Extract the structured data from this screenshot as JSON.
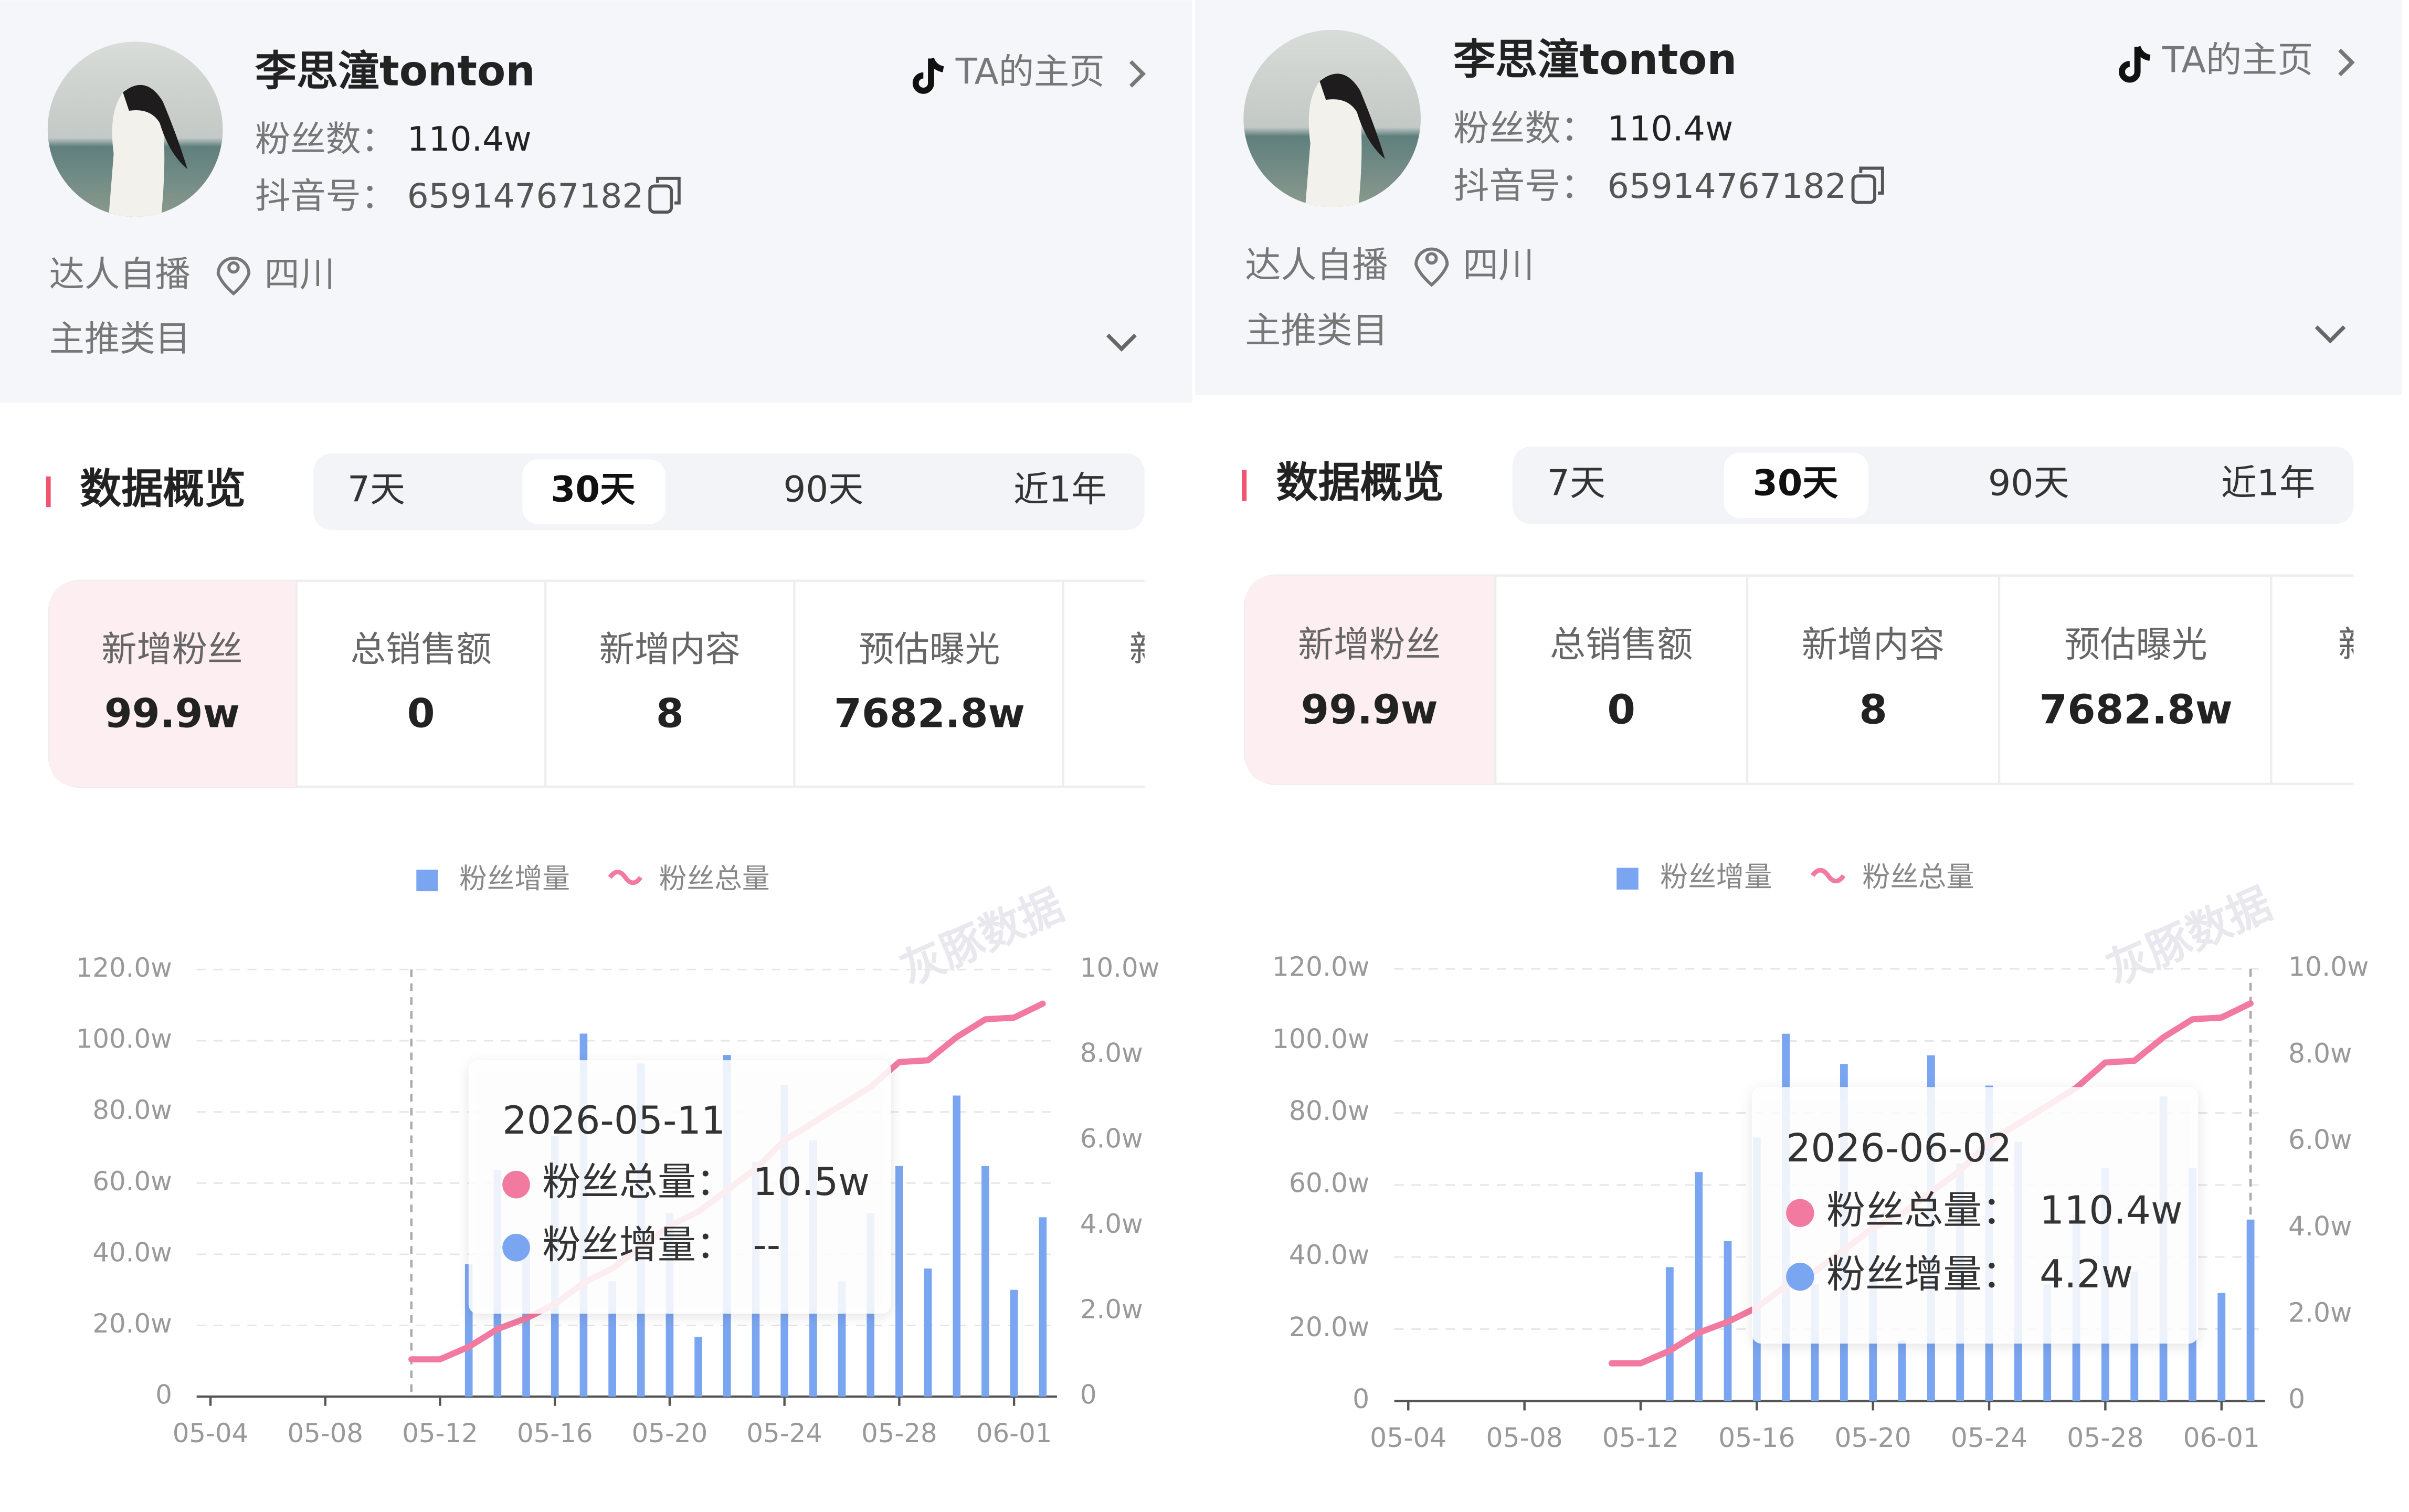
{
  "panels": [
    {
      "profile": {
        "name": "李思潼tonton",
        "fans_label": "粉丝数：",
        "fans": "110.4w",
        "id_label": "抖音号：",
        "id": "65914767182",
        "homepage": "TA的主页",
        "tag": "达人自播",
        "location": "四川",
        "category": "主推类目"
      },
      "section_title": "数据概览",
      "tabs": [
        "7天",
        "30天",
        "90天",
        "近1年"
      ],
      "metrics": [
        {
          "label": "新增粉丝",
          "value": "99.9w"
        },
        {
          "label": "总销售额",
          "value": "0"
        },
        {
          "label": "新增内容",
          "value": "8"
        },
        {
          "label": "预估曝光",
          "value": "7682.8w"
        },
        {
          "label": "新"
        }
      ],
      "chart_data": {
        "type": "bar-line",
        "watermark": "灰豚数据",
        "categories": [
          "05-04",
          null,
          null,
          null,
          "05-08",
          null,
          null,
          null,
          "05-12",
          null,
          null,
          null,
          "05-16",
          null,
          null,
          null,
          "05-20",
          null,
          null,
          null,
          "05-24",
          null,
          null,
          null,
          "05-28",
          null,
          null,
          null,
          "06-01",
          null
        ],
        "series": [
          {
            "name": "粉丝增量",
            "color": "#7aa5f0",
            "axis": "y2",
            "values": [
              null,
              null,
              null,
              null,
              null,
              null,
              null,
              null,
              null,
              3.1,
              5.3,
              3.7,
              6.1,
              8.5,
              2.7,
              7.8,
              4.3,
              1.4,
              8.0,
              5.5,
              7.3,
              6.0,
              2.7,
              4.3,
              5.4,
              3.0,
              7.05,
              5.4,
              2.5,
              4.2
            ]
          },
          {
            "name": "粉丝总量",
            "color": "#f27aa0",
            "values": [
              null,
              null,
              null,
              null,
              null,
              null,
              null,
              10.5,
              10.5,
              14,
              19,
              22,
              26,
              32,
              36,
              42,
              48,
              52,
              58,
              64,
              72,
              77,
              82,
              87,
              94,
              94.5,
              101,
              106,
              106.5,
              110.4
            ]
          }
        ],
        "ylim": [
          0,
          120
        ],
        "yticks": [
          0,
          {
            "value": 20,
            "label": "20.0w"
          },
          {
            "value": 40,
            "label": "40.0w"
          },
          {
            "value": 60,
            "label": "60.0w"
          },
          {
            "value": 80,
            "label": "80.0w"
          },
          {
            "value": 100,
            "label": "100.0w"
          },
          {
            "value": 120,
            "label": "120.0w"
          }
        ],
        "y2lim": [
          0,
          10
        ],
        "y2ticks": [
          0,
          {
            "value": 2,
            "label": "2.0w"
          },
          {
            "value": 4,
            "label": "4.0w"
          },
          {
            "value": 6,
            "label": "6.0w"
          },
          {
            "value": 8,
            "label": "8.0w"
          },
          {
            "value": 10,
            "label": "10.0w"
          }
        ],
        "grid": true
      },
      "tooltip": {
        "date": "2026-05-11",
        "items": [
          {
            "label": "粉丝总量：",
            "value": "10.5w"
          },
          {
            "label": "粉丝增量：",
            "value": "--"
          }
        ]
      }
    },
    {
      "profile": {
        "name": "李思潼tonton",
        "fans_label": "粉丝数：",
        "fans": "110.4w",
        "id_label": "抖音号：",
        "id": "65914767182",
        "homepage": "TA的主页",
        "tag": "达人自播",
        "location": "四川",
        "category": "主推类目"
      },
      "section_title": "数据概览",
      "tabs": [
        "7天",
        "30天",
        "90天",
        "近1年"
      ],
      "metrics": [
        {
          "label": "新增粉丝",
          "value": "99.9w"
        },
        {
          "label": "总销售额",
          "value": "0"
        },
        {
          "label": "新增内容",
          "value": "8"
        },
        {
          "label": "预估曝光",
          "value": "7682.8w"
        },
        {
          "label": "新"
        }
      ],
      "chart_data": {
        "type": "bar-line",
        "watermark": "灰豚数据",
        "categories": [
          "05-04",
          null,
          null,
          null,
          "05-08",
          null,
          null,
          null,
          "05-12",
          null,
          null,
          null,
          "05-16",
          null,
          null,
          null,
          "05-20",
          null,
          null,
          null,
          "05-24",
          null,
          null,
          null,
          "05-28",
          null,
          null,
          null,
          "06-01",
          null
        ],
        "series": [
          {
            "name": "粉丝增量",
            "color": "#7aa5f0",
            "axis": "y2",
            "values": [
              null,
              null,
              null,
              null,
              null,
              null,
              null,
              null,
              null,
              3.1,
              5.3,
              3.7,
              6.1,
              8.5,
              2.7,
              7.8,
              4.3,
              1.4,
              8.0,
              5.5,
              7.3,
              6.0,
              2.7,
              4.3,
              5.4,
              3.0,
              7.05,
              5.4,
              2.5,
              4.2
            ]
          },
          {
            "name": "粉丝总量",
            "color": "#f27aa0",
            "values": [
              null,
              null,
              null,
              null,
              null,
              null,
              null,
              10.5,
              10.5,
              14,
              19,
              22,
              26,
              32,
              36,
              42,
              48,
              52,
              58,
              64,
              72,
              77,
              82,
              87,
              94,
              94.5,
              101,
              106,
              106.5,
              110.4
            ]
          }
        ],
        "ylim": [
          0,
          120
        ],
        "yticks": [
          0,
          {
            "value": 20,
            "label": "20.0w"
          },
          {
            "value": 40,
            "label": "40.0w"
          },
          {
            "value": 60,
            "label": "60.0w"
          },
          {
            "value": 80,
            "label": "80.0w"
          },
          {
            "value": 100,
            "label": "100.0w"
          },
          {
            "value": 120,
            "label": "120.0w"
          }
        ],
        "y2lim": [
          0,
          10
        ],
        "y2ticks": [
          0,
          {
            "value": 2,
            "label": "2.0w"
          },
          {
            "value": 4,
            "label": "4.0w"
          },
          {
            "value": 6,
            "label": "6.0w"
          },
          {
            "value": 8,
            "label": "8.0w"
          },
          {
            "value": 10,
            "label": "10.0w"
          }
        ],
        "grid": true
      },
      "tooltip": {
        "date": "2026-06-02",
        "items": [
          {
            "label": "粉丝总量：",
            "value": "110.4w"
          },
          {
            "label": "粉丝增量：",
            "value": "4.2w"
          }
        ]
      }
    }
  ]
}
